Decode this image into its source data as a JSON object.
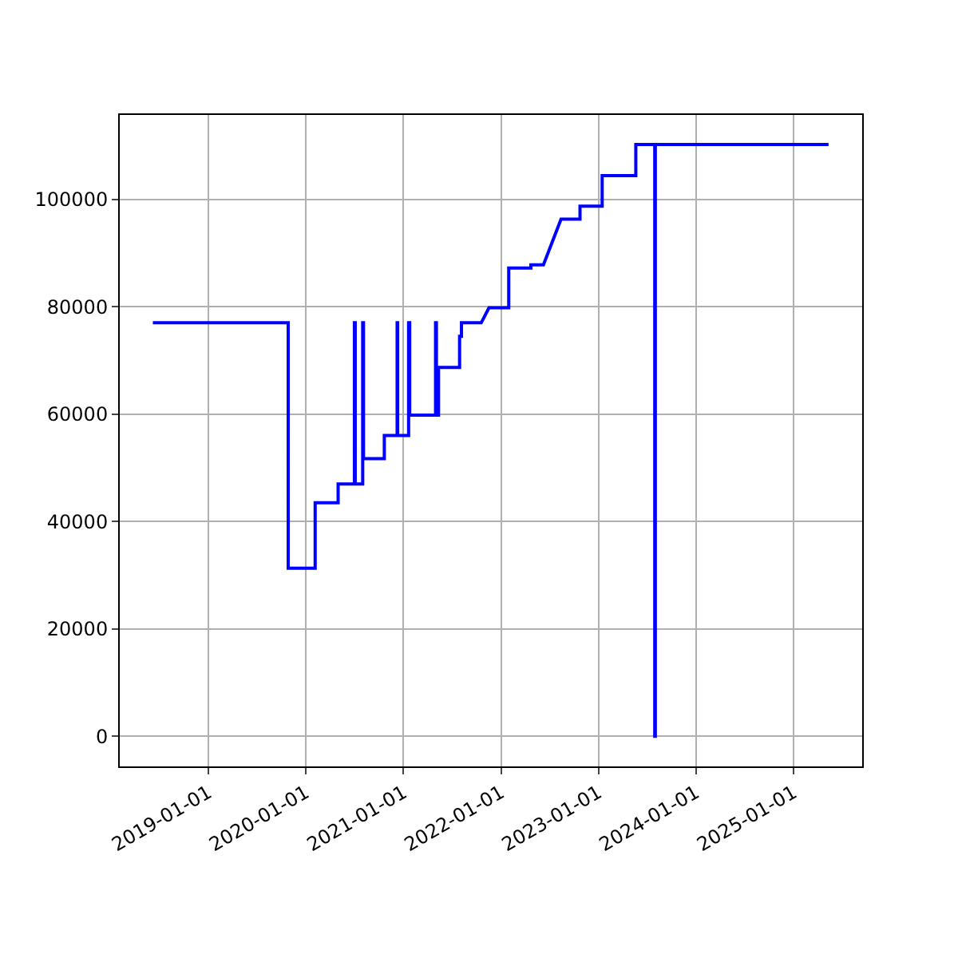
{
  "chart_data": {
    "type": "line",
    "grid": true,
    "marker": "none",
    "line_style": "solid",
    "xlim": [
      "2018-02-03",
      "2025-09-15"
    ],
    "ylim": [
      -5600,
      115700
    ],
    "xticks": [
      "2019-01-01",
      "2020-01-01",
      "2021-01-01",
      "2022-01-01",
      "2023-01-01",
      "2024-01-01",
      "2025-01-01"
    ],
    "yticks": [
      0,
      20000,
      40000,
      60000,
      80000,
      100000
    ],
    "series": [
      {
        "color": "#0000ff",
        "x": [
          "2018-06-07",
          "2019-10-27",
          "2019-10-27",
          "2020-02-05",
          "2020-02-05",
          "2020-05-01",
          "2020-05-01",
          "2020-07-01",
          "2020-07-01",
          "2020-07-04",
          "2020-07-04",
          "2020-08-01",
          "2020-08-01",
          "2020-08-04",
          "2020-08-04",
          "2020-10-21",
          "2020-10-21",
          "2020-12-08",
          "2020-12-08",
          "2020-12-10",
          "2020-12-10",
          "2021-01-20",
          "2021-01-20",
          "2021-01-24",
          "2021-01-24",
          "2021-05-01",
          "2021-05-01",
          "2021-05-04",
          "2021-05-04",
          "2021-05-12",
          "2021-05-12",
          "2021-07-30",
          "2021-07-30",
          "2021-08-06",
          "2021-08-06",
          "2021-10-19",
          "2021-11-17",
          "2022-01-30",
          "2022-01-30",
          "2022-04-23",
          "2022-04-23",
          "2022-06-09",
          "2022-08-14",
          "2022-10-24",
          "2022-10-24",
          "2023-01-15",
          "2023-01-15",
          "2023-05-21",
          "2023-05-21",
          "2023-07-31",
          "2023-07-31",
          "2023-08-02",
          "2023-08-02",
          "2025-05-12"
        ],
        "values": [
          77000,
          77000,
          31300,
          31300,
          43500,
          43500,
          47000,
          47000,
          77000,
          77000,
          47000,
          47000,
          77000,
          77000,
          51700,
          51700,
          56000,
          56000,
          77000,
          77000,
          56000,
          56000,
          77000,
          77000,
          59800,
          59800,
          77000,
          77000,
          59800,
          59800,
          68700,
          68700,
          74500,
          74500,
          77000,
          77000,
          79800,
          79800,
          87200,
          87200,
          87800,
          87800,
          96300,
          96300,
          98700,
          98700,
          104400,
          104400,
          110200,
          110200,
          0,
          0,
          110200,
          110200
        ]
      }
    ]
  }
}
